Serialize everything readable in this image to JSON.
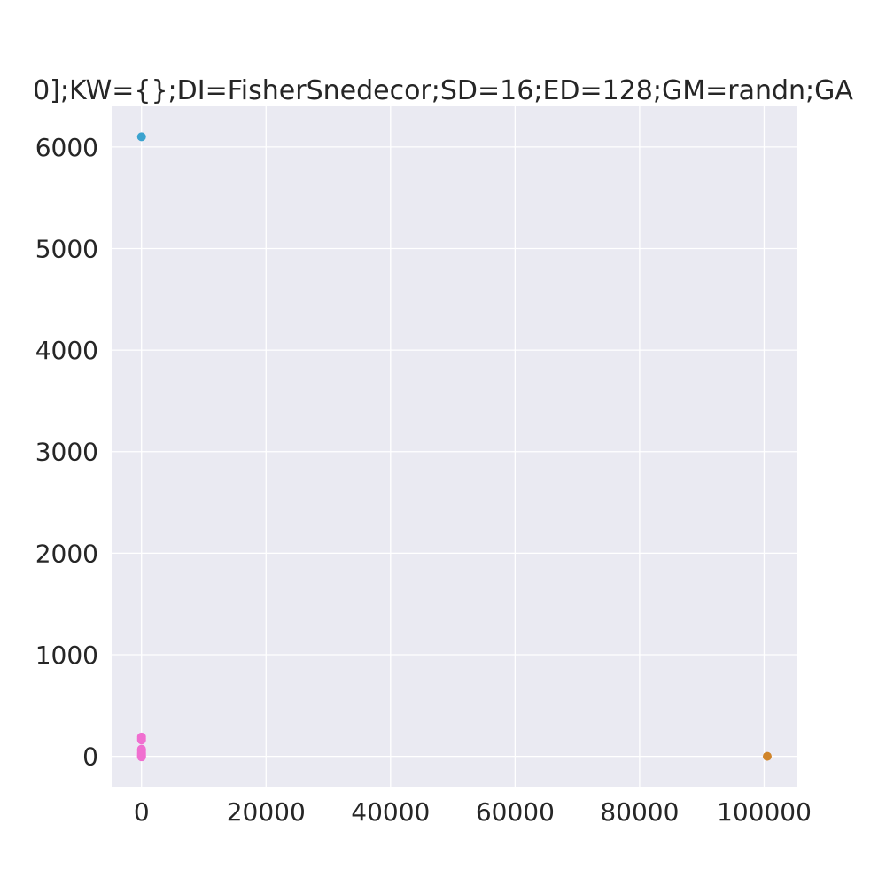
{
  "chart_data": {
    "type": "scatter",
    "title": "0];KW={};DI=FisherSnedecor;SD=16;ED=128;GM=randn;GA",
    "xlabel": "",
    "ylabel": "",
    "xlim": [
      -4800,
      105200
    ],
    "ylim": [
      -300,
      6400
    ],
    "xticks": [
      0,
      20000,
      40000,
      60000,
      80000,
      100000
    ],
    "yticks": [
      0,
      1000,
      2000,
      3000,
      4000,
      5000,
      6000
    ],
    "xtick_labels": [
      "0",
      "20000",
      "40000",
      "60000",
      "80000",
      "100000"
    ],
    "ytick_labels": [
      "0",
      "1000",
      "2000",
      "3000",
      "4000",
      "5000",
      "6000"
    ],
    "grid": true,
    "background_color": "#eaeaf2",
    "points": [
      {
        "x": 0,
        "y": 6100,
        "color": "#3ba3cf"
      },
      {
        "x": 100500,
        "y": 0,
        "color": "#d0842a"
      },
      {
        "x": 0,
        "y": 190,
        "color": "#f06fd0"
      },
      {
        "x": 0,
        "y": 175,
        "color": "#f06fd0"
      },
      {
        "x": 0,
        "y": 160,
        "color": "#f06fd0"
      },
      {
        "x": 0,
        "y": 70,
        "color": "#f06fd0"
      },
      {
        "x": 0,
        "y": 55,
        "color": "#f06fd0"
      },
      {
        "x": 0,
        "y": 40,
        "color": "#f06fd0"
      },
      {
        "x": 0,
        "y": 28,
        "color": "#f06fd0"
      },
      {
        "x": 0,
        "y": 18,
        "color": "#f06fd0"
      },
      {
        "x": 0,
        "y": 8,
        "color": "#f06fd0"
      },
      {
        "x": 0,
        "y": 2,
        "color": "#f06fd0"
      },
      {
        "x": 0,
        "y": -5,
        "color": "#f06fd0"
      }
    ]
  }
}
